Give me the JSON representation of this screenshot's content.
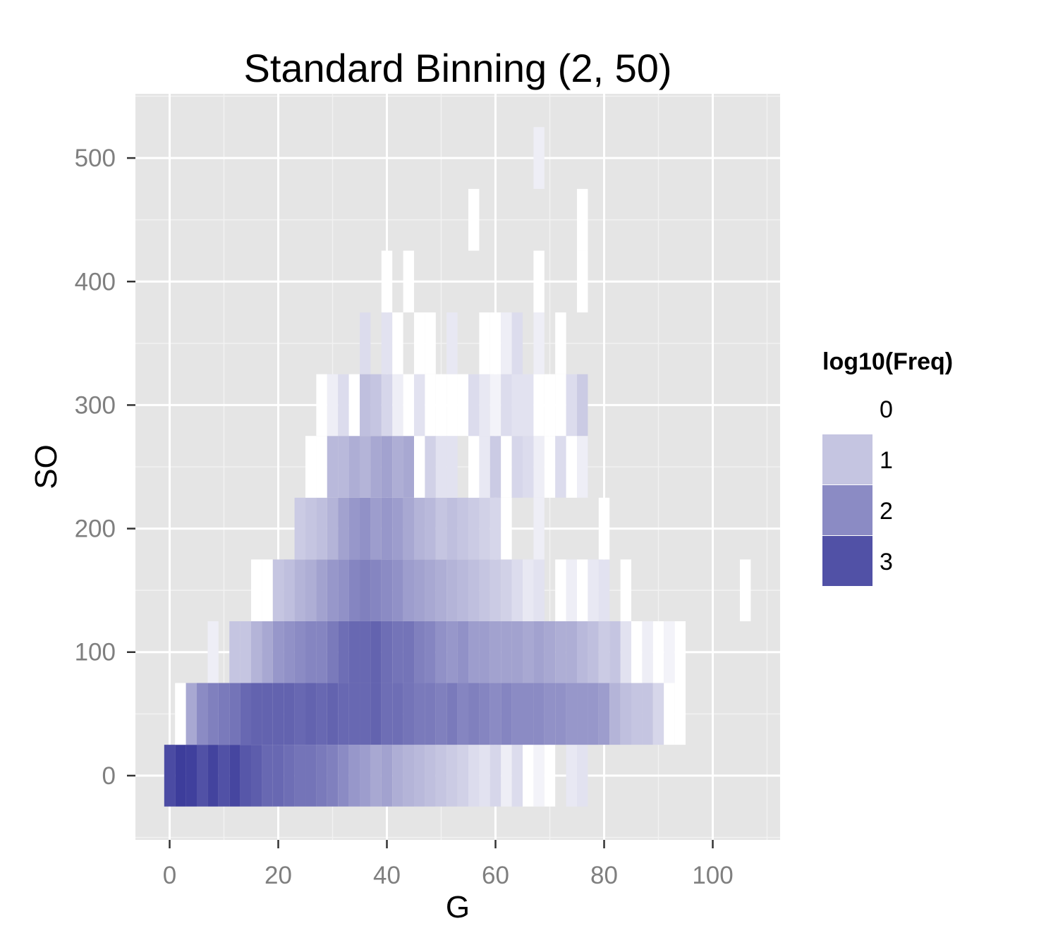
{
  "colors": {
    "panel_background": "#E5E5E5",
    "grid_major": "#FFFFFF",
    "grid_minor": "#F2F2F2",
    "fill_low": "#FFFFFF",
    "fill_high": "#3A3A9A",
    "tick_label": "#7F7F7F"
  },
  "chart_data": {
    "type": "heatmap",
    "title": "Standard Binning (2, 50)",
    "xlabel": "G",
    "ylabel": "SO",
    "xlim": [
      -6.3,
      112.4
    ],
    "ylim": [
      -52,
      552
    ],
    "x_ticks": [
      0,
      20,
      40,
      60,
      80,
      100
    ],
    "y_ticks": [
      0,
      100,
      200,
      300,
      400,
      500
    ],
    "grid": true,
    "bin_width": 2,
    "bin_height": 50,
    "legend": {
      "title": "log10(Freq)",
      "position": "right",
      "entries": [
        {
          "label": "0",
          "value": 0
        },
        {
          "label": "1",
          "value": 1
        },
        {
          "label": "2",
          "value": 2
        },
        {
          "label": "3",
          "value": 3
        }
      ]
    },
    "value_range": [
      0,
      3.4
    ],
    "bins": [
      {
        "y": 0,
        "x": [
          0,
          2,
          4,
          6,
          8,
          10,
          12,
          14,
          16,
          18,
          20,
          22,
          24,
          26,
          28,
          30,
          32,
          34,
          36,
          38,
          40,
          42,
          44,
          46,
          48,
          50,
          52,
          54,
          56,
          58,
          60,
          62,
          64,
          66,
          68,
          70,
          74,
          76
        ],
        "v": [
          3.1,
          3.35,
          3.3,
          3.0,
          3.25,
          3.0,
          3.2,
          2.9,
          2.8,
          2.6,
          2.6,
          2.5,
          2.4,
          2.4,
          2.3,
          2.2,
          2.0,
          1.8,
          1.7,
          1.5,
          1.6,
          1.4,
          1.3,
          1.2,
          1.1,
          1.0,
          0.9,
          0.8,
          0.6,
          0.5,
          0.7,
          0.3,
          0.6,
          0.0,
          0.2,
          0.0,
          0.4,
          0.5
        ]
      },
      {
        "y": 50,
        "x": [
          2,
          4,
          6,
          8,
          10,
          12,
          14,
          16,
          18,
          20,
          22,
          24,
          26,
          28,
          30,
          32,
          34,
          36,
          38,
          40,
          42,
          44,
          46,
          48,
          50,
          52,
          54,
          56,
          58,
          60,
          62,
          64,
          66,
          68,
          70,
          72,
          74,
          76,
          78,
          80,
          82,
          84,
          86,
          88,
          90,
          92,
          94
        ],
        "v": [
          0.0,
          1.5,
          2.0,
          2.2,
          2.3,
          2.4,
          2.6,
          2.7,
          2.7,
          2.7,
          2.7,
          2.6,
          2.7,
          2.6,
          2.7,
          2.6,
          2.6,
          2.6,
          2.7,
          2.5,
          2.5,
          2.4,
          2.3,
          2.3,
          2.2,
          2.3,
          2.1,
          2.2,
          2.1,
          2.0,
          2.1,
          2.0,
          2.0,
          2.0,
          1.9,
          1.9,
          1.8,
          1.8,
          1.8,
          1.7,
          1.3,
          1.1,
          1.0,
          1.0,
          0.7,
          0.0,
          0.0
        ]
      },
      {
        "y": 100,
        "x": [
          8,
          12,
          14,
          16,
          18,
          20,
          22,
          24,
          26,
          28,
          30,
          32,
          34,
          36,
          38,
          40,
          42,
          44,
          46,
          48,
          50,
          52,
          54,
          56,
          58,
          60,
          62,
          64,
          66,
          68,
          70,
          72,
          74,
          76,
          78,
          80,
          82,
          84,
          86,
          88,
          90,
          92,
          94
        ],
        "v": [
          0.3,
          1.0,
          1.0,
          1.3,
          1.5,
          1.8,
          1.9,
          2.0,
          2.1,
          2.1,
          2.3,
          2.5,
          2.6,
          2.6,
          2.7,
          2.5,
          2.4,
          2.4,
          2.2,
          2.1,
          1.9,
          1.8,
          1.9,
          1.7,
          1.7,
          1.6,
          1.6,
          1.6,
          1.5,
          1.6,
          1.5,
          1.4,
          1.4,
          1.2,
          1.1,
          0.9,
          1.0,
          0.5,
          0.0,
          0.3,
          0.0,
          0.2,
          0.0
        ]
      },
      {
        "y": 150,
        "x": [
          16,
          18,
          20,
          22,
          24,
          26,
          28,
          30,
          32,
          34,
          36,
          38,
          40,
          42,
          44,
          46,
          48,
          50,
          52,
          54,
          56,
          58,
          60,
          62,
          64,
          66,
          68,
          72,
          74,
          76,
          78,
          80,
          84,
          106
        ],
        "v": [
          0.0,
          0.0,
          1.0,
          1.1,
          1.3,
          1.4,
          1.6,
          1.8,
          1.9,
          2.1,
          2.2,
          2.1,
          2.0,
          1.9,
          1.7,
          1.6,
          1.5,
          1.4,
          1.3,
          1.2,
          1.1,
          1.0,
          0.9,
          0.8,
          0.6,
          0.4,
          0.5,
          0.0,
          0.3,
          0.0,
          0.4,
          0.5,
          0.0,
          0.0
        ]
      },
      {
        "y": 200,
        "x": [
          24,
          26,
          28,
          30,
          32,
          34,
          36,
          38,
          40,
          42,
          44,
          46,
          48,
          50,
          52,
          54,
          56,
          58,
          60,
          62,
          68,
          80
        ],
        "v": [
          0.9,
          1.0,
          1.1,
          1.3,
          1.6,
          1.8,
          1.9,
          1.7,
          1.8,
          1.7,
          1.5,
          1.3,
          1.2,
          1.0,
          1.1,
          1.0,
          0.9,
          0.8,
          0.7,
          0.0,
          0.3,
          0.0
        ]
      },
      {
        "y": 250,
        "x": [
          26,
          28,
          30,
          32,
          34,
          36,
          38,
          40,
          42,
          44,
          46,
          48,
          50,
          52,
          56,
          58,
          60,
          62,
          64,
          66,
          68,
          70,
          72,
          74,
          76
        ],
        "v": [
          0.0,
          0.0,
          1.2,
          1.2,
          1.4,
          1.3,
          1.5,
          1.6,
          1.4,
          1.5,
          0.0,
          0.8,
          0.5,
          0.5,
          0.0,
          0.4,
          0.9,
          0.0,
          0.7,
          0.6,
          0.3,
          0.0,
          0.6,
          0.0,
          0.3
        ]
      },
      {
        "y": 300,
        "x": [
          28,
          30,
          32,
          34,
          36,
          38,
          40,
          42,
          44,
          46,
          48,
          50,
          52,
          54,
          56,
          58,
          60,
          62,
          64,
          66,
          68,
          70,
          72,
          74,
          76
        ],
        "v": [
          0.0,
          0.3,
          0.6,
          0.0,
          1.1,
          1.0,
          0.7,
          0.3,
          0.0,
          0.5,
          0.0,
          0.0,
          0.0,
          0.0,
          0.6,
          0.4,
          0.2,
          0.6,
          0.5,
          0.5,
          0.0,
          0.0,
          0.0,
          0.6,
          0.9
        ]
      },
      {
        "y": 350,
        "x": [
          36,
          40,
          42,
          46,
          48,
          52,
          58,
          60,
          62,
          64,
          68,
          72
        ],
        "v": [
          0.6,
          0.5,
          0.0,
          0.0,
          0.0,
          0.4,
          0.0,
          0.0,
          0.3,
          0.6,
          0.3,
          0.0
        ]
      },
      {
        "y": 400,
        "x": [
          40,
          44,
          68,
          76
        ],
        "v": [
          0.0,
          0.0,
          0.0,
          0.0
        ]
      },
      {
        "y": 450,
        "x": [
          56,
          76
        ],
        "v": [
          0.0,
          0.0
        ]
      },
      {
        "y": 500,
        "x": [
          68
        ],
        "v": [
          0.3
        ]
      }
    ]
  }
}
